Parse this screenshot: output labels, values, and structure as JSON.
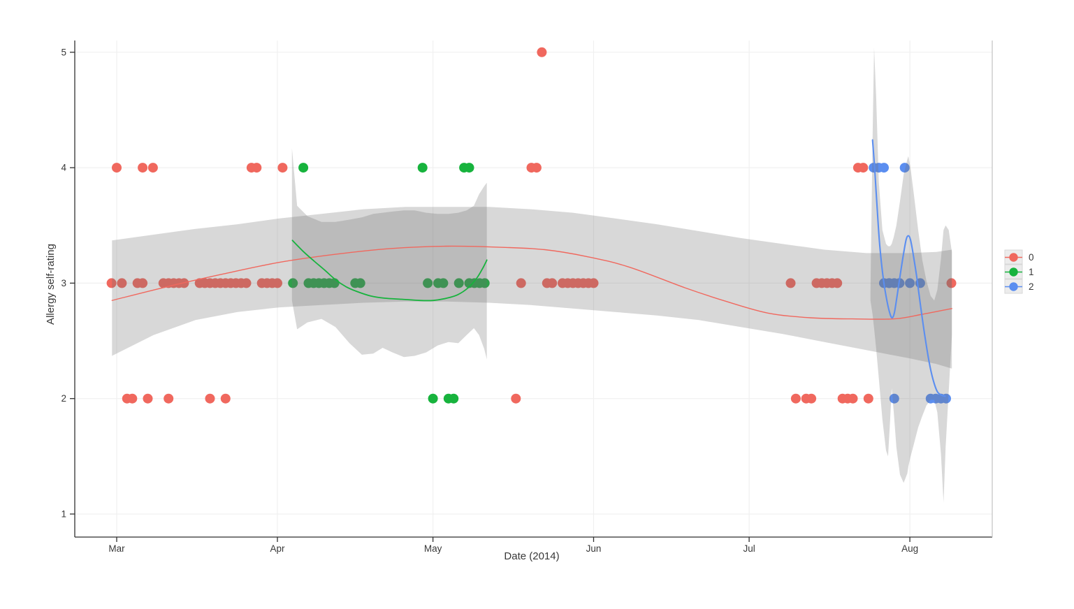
{
  "page": {
    "background": "#ffffff",
    "description": "Scatter plot of allergy self-rating over time with loess smooth lines and confidence ribbons for three groups"
  },
  "chart_data": {
    "type": "scatter",
    "title": "",
    "xlabel": "Date (2014)",
    "ylabel": "Allergy self-rating",
    "ylim": [
      1,
      5
    ],
    "grid": "major",
    "legend_position": "right",
    "band_color": "rgba(110,110,110,0.27)",
    "y_ticks": [
      "1",
      "2",
      "3",
      "4",
      "5"
    ],
    "x_ticks": [
      {
        "label": "Mar",
        "day": 0
      },
      {
        "label": "Apr",
        "day": 31
      },
      {
        "label": "May",
        "day": 61
      },
      {
        "label": "Jun",
        "day": 92
      },
      {
        "label": "Jul",
        "day": 122
      },
      {
        "label": "Aug",
        "day": 153
      }
    ],
    "x_unit": "date 2014, stored as MM-DD",
    "legend": {
      "entries": [
        {
          "label": "0",
          "color": "#F0685E"
        },
        {
          "label": "1",
          "color": "#17B33D"
        },
        {
          "label": "2",
          "color": "#5B8EF0"
        }
      ]
    },
    "series": [
      {
        "name": "0",
        "color": "#F0685E",
        "points": [
          [
            "05-22",
            5
          ],
          [
            "03-01",
            4
          ],
          [
            "03-06",
            4
          ],
          [
            "03-08",
            4
          ],
          [
            "03-27",
            4
          ],
          [
            "03-28",
            4
          ],
          [
            "04-02",
            4
          ],
          [
            "05-20",
            4
          ],
          [
            "05-21",
            4
          ],
          [
            "07-22",
            4
          ],
          [
            "07-23",
            4
          ],
          [
            "02-28",
            3
          ],
          [
            "03-02",
            3
          ],
          [
            "03-05",
            3
          ],
          [
            "03-06",
            3
          ],
          [
            "03-10",
            3
          ],
          [
            "03-11",
            3
          ],
          [
            "03-12",
            3
          ],
          [
            "03-13",
            3
          ],
          [
            "03-14",
            3
          ],
          [
            "03-17",
            3
          ],
          [
            "03-18",
            3
          ],
          [
            "03-19",
            3
          ],
          [
            "03-20",
            3
          ],
          [
            "03-21",
            3
          ],
          [
            "03-22",
            3
          ],
          [
            "03-23",
            3
          ],
          [
            "03-24",
            3
          ],
          [
            "03-25",
            3
          ],
          [
            "03-26",
            3
          ],
          [
            "03-29",
            3
          ],
          [
            "03-30",
            3
          ],
          [
            "03-31",
            3
          ],
          [
            "04-01",
            3
          ],
          [
            "05-18",
            3
          ],
          [
            "05-23",
            3
          ],
          [
            "05-24",
            3
          ],
          [
            "05-26",
            3
          ],
          [
            "05-27",
            3
          ],
          [
            "05-28",
            3
          ],
          [
            "05-29",
            3
          ],
          [
            "05-30",
            3
          ],
          [
            "05-31",
            3
          ],
          [
            "06-01",
            3
          ],
          [
            "07-09",
            3
          ],
          [
            "07-14",
            3
          ],
          [
            "07-15",
            3
          ],
          [
            "07-16",
            3
          ],
          [
            "07-17",
            3
          ],
          [
            "07-18",
            3
          ],
          [
            "08-09",
            3
          ],
          [
            "03-03",
            2
          ],
          [
            "03-04",
            2
          ],
          [
            "03-07",
            2
          ],
          [
            "03-11",
            2
          ],
          [
            "03-19",
            2
          ],
          [
            "03-22",
            2
          ],
          [
            "05-17",
            2
          ],
          [
            "07-10",
            2
          ],
          [
            "07-12",
            2
          ],
          [
            "07-13",
            2
          ],
          [
            "07-19",
            2
          ],
          [
            "07-20",
            2
          ],
          [
            "07-21",
            2
          ],
          [
            "07-24",
            2
          ]
        ]
      },
      {
        "name": "1",
        "color": "#17B33D",
        "points": [
          [
            "04-06",
            4
          ],
          [
            "04-29",
            4
          ],
          [
            "05-07",
            4
          ],
          [
            "05-08",
            4
          ],
          [
            "04-04",
            3
          ],
          [
            "04-07",
            3
          ],
          [
            "04-08",
            3
          ],
          [
            "04-09",
            3
          ],
          [
            "04-10",
            3
          ],
          [
            "04-11",
            3
          ],
          [
            "04-12",
            3
          ],
          [
            "04-16",
            3
          ],
          [
            "04-17",
            3
          ],
          [
            "04-30",
            3
          ],
          [
            "05-02",
            3
          ],
          [
            "05-03",
            3
          ],
          [
            "05-06",
            3
          ],
          [
            "05-08",
            3
          ],
          [
            "05-09",
            3
          ],
          [
            "05-10",
            3
          ],
          [
            "05-11",
            3
          ],
          [
            "05-01",
            2
          ],
          [
            "05-04",
            2
          ],
          [
            "05-05",
            2
          ]
        ]
      },
      {
        "name": "2",
        "color": "#5B8EF0",
        "points": [
          [
            "07-25",
            4
          ],
          [
            "07-26",
            4
          ],
          [
            "07-27",
            4
          ],
          [
            "07-31",
            4
          ],
          [
            "07-27",
            3
          ],
          [
            "07-28",
            3
          ],
          [
            "07-28",
            3
          ],
          [
            "07-29",
            3
          ],
          [
            "07-30",
            3
          ],
          [
            "07-30",
            3
          ],
          [
            "08-01",
            3
          ],
          [
            "08-03",
            3
          ],
          [
            "07-29",
            2
          ],
          [
            "08-05",
            2
          ],
          [
            "08-06",
            2
          ],
          [
            "08-07",
            2
          ],
          [
            "08-08",
            2
          ]
        ]
      }
    ],
    "smooths": [
      {
        "name": "0",
        "color": "#F0685E",
        "width": 1.4,
        "line": [
          [
            -0.9,
            2.85
          ],
          [
            9.8,
            2.97
          ],
          [
            20.6,
            3.08
          ],
          [
            31.4,
            3.18
          ],
          [
            42.2,
            3.25
          ],
          [
            53.0,
            3.3
          ],
          [
            63.7,
            3.32
          ],
          [
            74.5,
            3.31
          ],
          [
            82.6,
            3.29
          ],
          [
            90.7,
            3.23
          ],
          [
            98.8,
            3.14
          ],
          [
            109.6,
            2.96
          ],
          [
            117.7,
            2.84
          ],
          [
            125.7,
            2.74
          ],
          [
            133.8,
            2.7
          ],
          [
            141.9,
            2.69
          ],
          [
            150.0,
            2.69
          ],
          [
            155.4,
            2.73
          ],
          [
            161.1,
            2.78
          ]
        ],
        "band": [
          [
            -0.9,
            2.37,
            3.37
          ],
          [
            7.1,
            2.55,
            3.42
          ],
          [
            15.2,
            2.68,
            3.47
          ],
          [
            23.3,
            2.75,
            3.51
          ],
          [
            31.4,
            2.79,
            3.56
          ],
          [
            39.5,
            2.81,
            3.6
          ],
          [
            47.6,
            2.83,
            3.64
          ],
          [
            55.7,
            2.84,
            3.66
          ],
          [
            63.7,
            2.84,
            3.66
          ],
          [
            71.8,
            2.83,
            3.66
          ],
          [
            79.9,
            2.81,
            3.64
          ],
          [
            88.0,
            2.78,
            3.61
          ],
          [
            96.1,
            2.75,
            3.56
          ],
          [
            104.2,
            2.72,
            3.51
          ],
          [
            112.3,
            2.68,
            3.45
          ],
          [
            120.4,
            2.62,
            3.39
          ],
          [
            128.4,
            2.56,
            3.34
          ],
          [
            136.5,
            2.49,
            3.29
          ],
          [
            144.6,
            2.42,
            3.26
          ],
          [
            152.7,
            2.35,
            3.26
          ],
          [
            158.1,
            2.3,
            3.27
          ],
          [
            161.1,
            2.26,
            3.29
          ]
        ]
      },
      {
        "name": "1",
        "color": "#17B33D",
        "width": 1.8,
        "line": [
          [
            33.9,
            3.37
          ],
          [
            36.1,
            3.27
          ],
          [
            38.1,
            3.19
          ],
          [
            40.2,
            3.11
          ],
          [
            42.2,
            3.03
          ],
          [
            44.2,
            2.97
          ],
          [
            46.2,
            2.93
          ],
          [
            48.9,
            2.89
          ],
          [
            51.6,
            2.87
          ],
          [
            55.0,
            2.86
          ],
          [
            58.4,
            2.85
          ],
          [
            61.1,
            2.85
          ],
          [
            63.7,
            2.87
          ],
          [
            65.8,
            2.9
          ],
          [
            67.8,
            2.96
          ],
          [
            69.4,
            3.04
          ],
          [
            70.5,
            3.12
          ],
          [
            71.2,
            3.18
          ],
          [
            71.4,
            3.2
          ]
        ],
        "band": [
          [
            33.8,
            2.85,
            4.17
          ],
          [
            34.8,
            2.6,
            3.67
          ],
          [
            36.8,
            2.66,
            3.58
          ],
          [
            39.5,
            2.69,
            3.53
          ],
          [
            42.2,
            2.62,
            3.53
          ],
          [
            44.9,
            2.48,
            3.55
          ],
          [
            47.3,
            2.38,
            3.57
          ],
          [
            49.5,
            2.39,
            3.6
          ],
          [
            51.3,
            2.44,
            3.61
          ],
          [
            53.2,
            2.4,
            3.62
          ],
          [
            55.4,
            2.36,
            3.63
          ],
          [
            57.5,
            2.37,
            3.63
          ],
          [
            59.7,
            2.4,
            3.61
          ],
          [
            61.9,
            2.46,
            3.6
          ],
          [
            64.0,
            2.49,
            3.6
          ],
          [
            65.9,
            2.48,
            3.61
          ],
          [
            67.5,
            2.55,
            3.63
          ],
          [
            68.9,
            2.61,
            3.67
          ],
          [
            69.9,
            2.55,
            3.77
          ],
          [
            70.9,
            2.43,
            3.84
          ],
          [
            71.4,
            2.34,
            3.87
          ]
        ]
      },
      {
        "name": "2",
        "color": "#5B8EF0",
        "width": 2.1,
        "line": [
          [
            145.8,
            4.24
          ],
          [
            146.2,
            4.0
          ],
          [
            146.7,
            3.64
          ],
          [
            147.2,
            3.32
          ],
          [
            147.9,
            3.03
          ],
          [
            148.6,
            2.84
          ],
          [
            149.2,
            2.73
          ],
          [
            149.6,
            2.7
          ],
          [
            150.0,
            2.74
          ],
          [
            150.5,
            2.88
          ],
          [
            151.1,
            3.06
          ],
          [
            151.8,
            3.26
          ],
          [
            152.3,
            3.38
          ],
          [
            152.7,
            3.41
          ],
          [
            153.1,
            3.38
          ],
          [
            153.6,
            3.26
          ],
          [
            154.3,
            3.06
          ],
          [
            155.1,
            2.79
          ],
          [
            155.9,
            2.54
          ],
          [
            156.7,
            2.32
          ],
          [
            157.5,
            2.16
          ],
          [
            158.3,
            2.06
          ],
          [
            159.1,
            2.03
          ],
          [
            159.8,
            2.02
          ]
        ],
        "band": [
          [
            145.4,
            2.85,
            2.91
          ],
          [
            145.8,
            2.73,
            4.24
          ],
          [
            146.1,
            2.61,
            5.04
          ],
          [
            146.5,
            2.43,
            4.61
          ],
          [
            147.0,
            2.18,
            3.88
          ],
          [
            147.7,
            1.82,
            3.46
          ],
          [
            148.4,
            1.55,
            3.34
          ],
          [
            148.8,
            1.5,
            3.32
          ],
          [
            149.2,
            1.82,
            3.32
          ],
          [
            149.5,
            2.09,
            3.34
          ],
          [
            149.9,
            1.88,
            3.4
          ],
          [
            150.4,
            1.58,
            3.5
          ],
          [
            151.1,
            1.34,
            3.71
          ],
          [
            151.8,
            1.27,
            3.94
          ],
          [
            152.5,
            1.35,
            4.07
          ],
          [
            152.7,
            1.41,
            4.1
          ],
          [
            153.1,
            1.49,
            4.01
          ],
          [
            153.8,
            1.61,
            3.76
          ],
          [
            154.6,
            1.75,
            3.46
          ],
          [
            155.4,
            1.85,
            3.2
          ],
          [
            156.2,
            1.94,
            3.02
          ],
          [
            157.0,
            1.99,
            2.89
          ],
          [
            157.7,
            1.99,
            2.85
          ],
          [
            158.3,
            1.88,
            2.94
          ],
          [
            159.0,
            1.52,
            3.21
          ],
          [
            159.5,
            1.1,
            3.46
          ],
          [
            159.9,
            1.58,
            3.5
          ],
          [
            160.5,
            2.06,
            3.46
          ],
          [
            161.1,
            2.55,
            3.27
          ]
        ]
      }
    ]
  }
}
